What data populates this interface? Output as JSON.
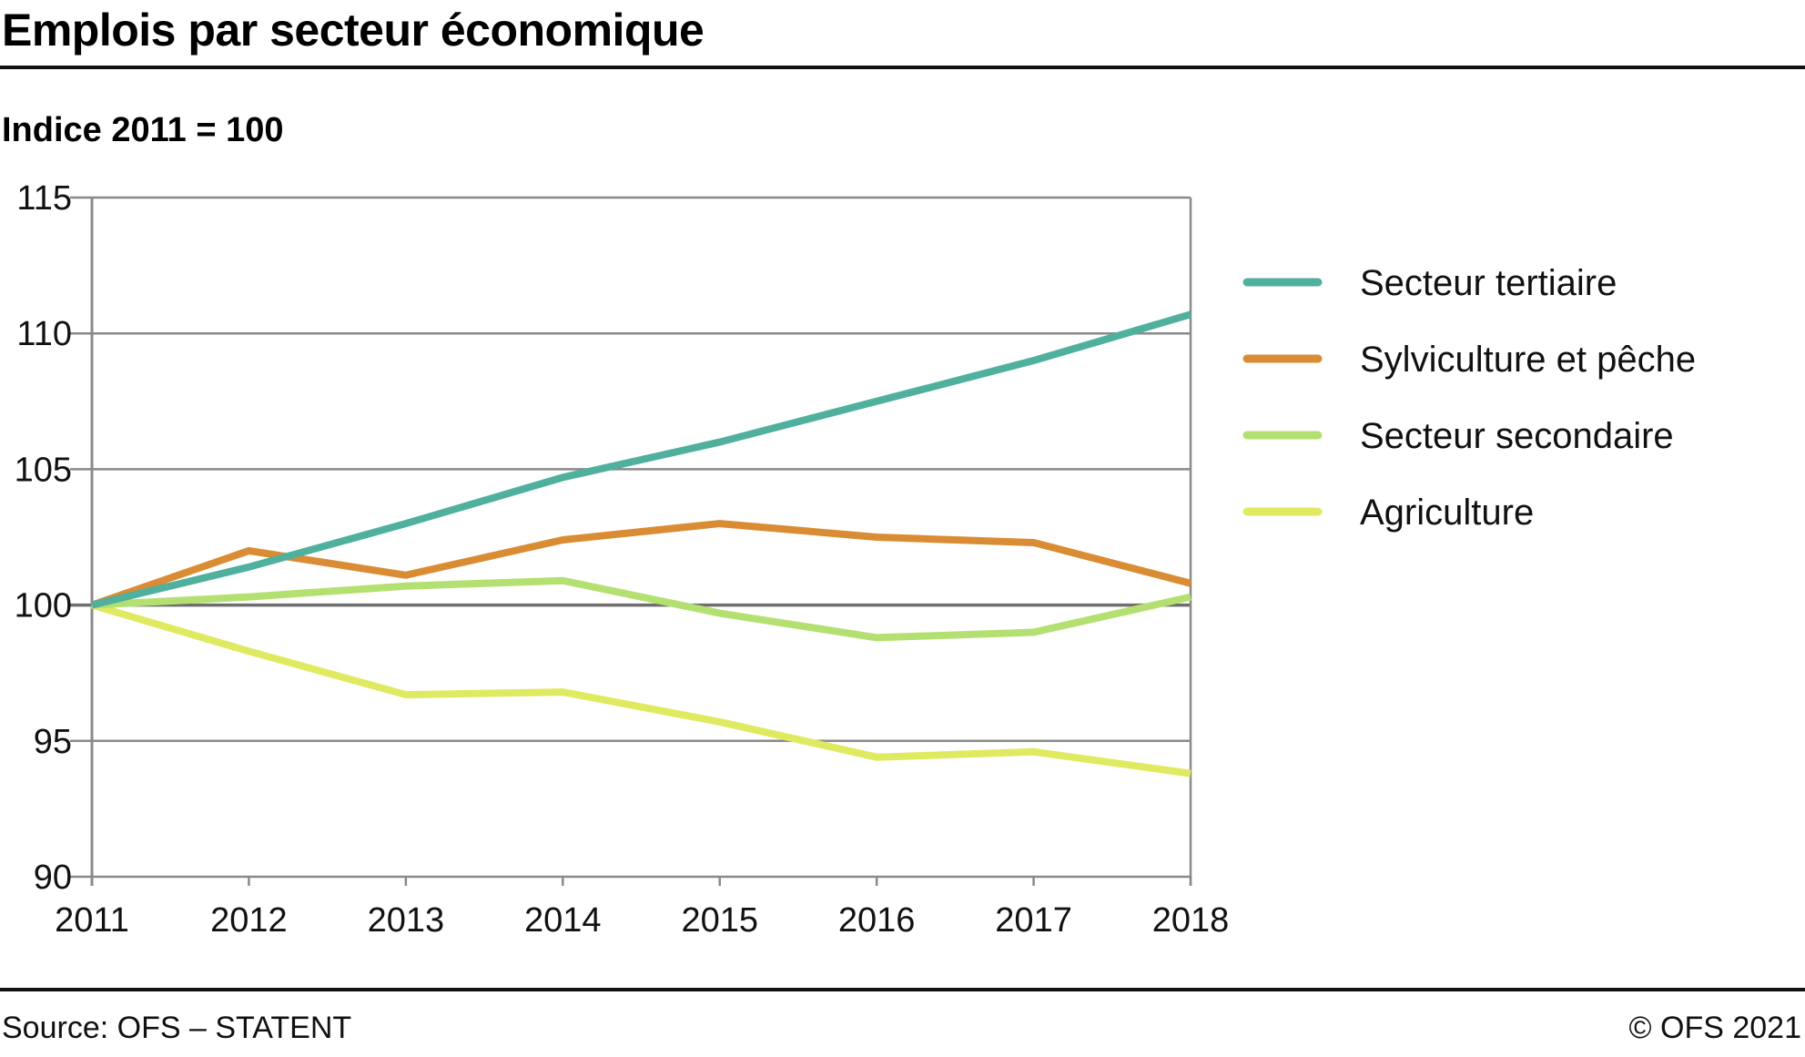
{
  "header": {
    "title": "Emplois par secteur économique",
    "subtitle": "Indice 2011 = 100"
  },
  "footer": {
    "source": "Source: OFS – STATENT",
    "copyright": "© OFS 2021"
  },
  "chart_data": {
    "type": "line",
    "title": "Emplois par secteur économique",
    "subtitle": "Indice 2011 = 100",
    "xlabel": "",
    "ylabel": "Indice 2011 = 100",
    "x": [
      "2011",
      "2012",
      "2013",
      "2014",
      "2015",
      "2016",
      "2017",
      "2018"
    ],
    "ylim": [
      90,
      115
    ],
    "yticks": [
      90,
      95,
      100,
      105,
      110,
      115
    ],
    "grid": true,
    "legend_position": "right",
    "series": [
      {
        "name": "Secteur tertiaire",
        "color": "#50b09e",
        "values": [
          100,
          101.4,
          103.0,
          104.7,
          106.0,
          107.5,
          109.0,
          110.7
        ]
      },
      {
        "name": "Sylviculture et pêche",
        "color": "#d98c33",
        "values": [
          100,
          102.0,
          101.1,
          102.4,
          103.0,
          102.5,
          102.3,
          100.8
        ]
      },
      {
        "name": "Secteur secondaire",
        "color": "#b4e072",
        "values": [
          100,
          100.3,
          100.7,
          100.9,
          99.7,
          98.8,
          99.0,
          100.3
        ]
      },
      {
        "name": "Agriculture",
        "color": "#e0ea60",
        "values": [
          100,
          98.3,
          96.7,
          96.8,
          95.7,
          94.4,
          94.6,
          93.8
        ]
      }
    ]
  }
}
